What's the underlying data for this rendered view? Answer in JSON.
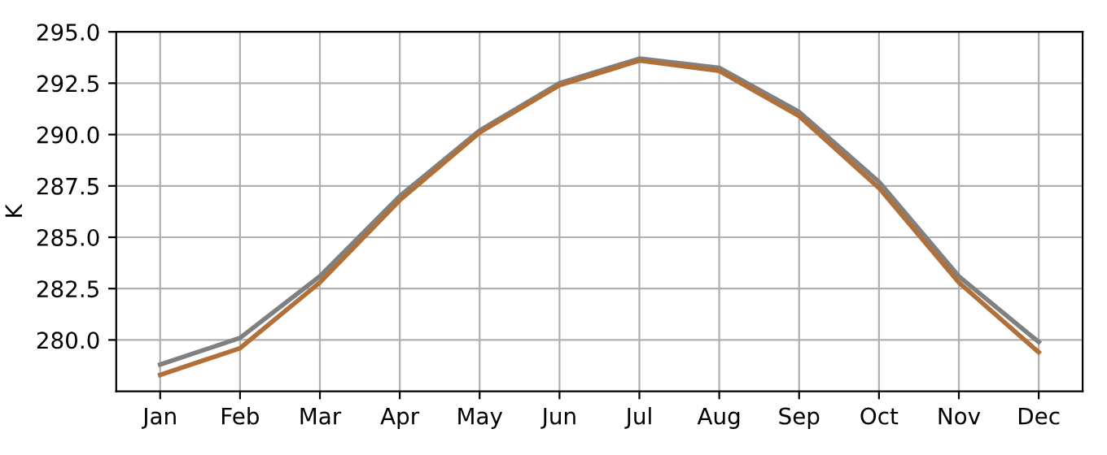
{
  "chart_data": {
    "type": "line",
    "ylabel": "K",
    "categories": [
      "Jan",
      "Feb",
      "Mar",
      "Apr",
      "May",
      "Jun",
      "Jul",
      "Aug",
      "Sep",
      "Oct",
      "Nov",
      "Dec"
    ],
    "series": [
      {
        "color": "#808080",
        "values": [
          278.8,
          280.1,
          283.1,
          287.0,
          290.2,
          292.5,
          293.7,
          293.25,
          291.1,
          287.7,
          283.1,
          279.9
        ]
      },
      {
        "color": "#b07038",
        "values": [
          278.3,
          279.6,
          282.8,
          286.8,
          290.1,
          292.4,
          293.6,
          293.1,
          290.9,
          287.4,
          282.8,
          279.4
        ]
      }
    ],
    "ylim": [
      277.5,
      295.0
    ],
    "yticks": [
      {
        "value": 280,
        "label": "280.0"
      },
      {
        "value": 282.5,
        "label": "282.5"
      },
      {
        "value": 285,
        "label": "285.0"
      },
      {
        "value": 287.5,
        "label": "287.5"
      },
      {
        "value": 290,
        "label": "290.0"
      },
      {
        "value": 292.5,
        "label": "292.5"
      },
      {
        "value": 295,
        "label": "295.0"
      }
    ],
    "grid": true,
    "line_style": "solid"
  }
}
